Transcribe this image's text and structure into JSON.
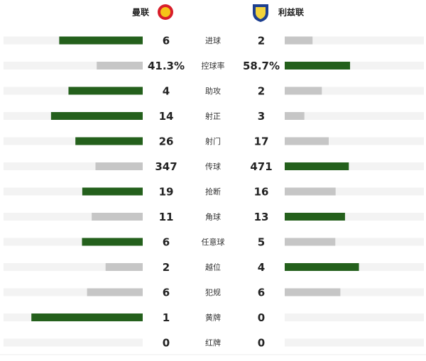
{
  "header": {
    "home": "曼联",
    "away": "利兹联"
  },
  "rows": [
    {
      "name": "进球",
      "home": 6,
      "away": 2
    },
    {
      "name": "控球率",
      "home": 41.3,
      "away": 58.7,
      "home_label": "41.3%",
      "away_label": "58.7%"
    },
    {
      "name": "助攻",
      "home": 4,
      "away": 2
    },
    {
      "name": "射正",
      "home": 14,
      "away": 3
    },
    {
      "name": "射门",
      "home": 26,
      "away": 17
    },
    {
      "name": "传球",
      "home": 347,
      "away": 471
    },
    {
      "name": "抢断",
      "home": 19,
      "away": 16
    },
    {
      "name": "角球",
      "home": 11,
      "away": 13
    },
    {
      "name": "任意球",
      "home": 6,
      "away": 5
    },
    {
      "name": "越位",
      "home": 2,
      "away": 4
    },
    {
      "name": "犯规",
      "home": 6,
      "away": 6
    },
    {
      "name": "黄牌",
      "home": 1,
      "away": 0
    },
    {
      "name": "红牌",
      "home": 0,
      "away": 0
    }
  ]
}
